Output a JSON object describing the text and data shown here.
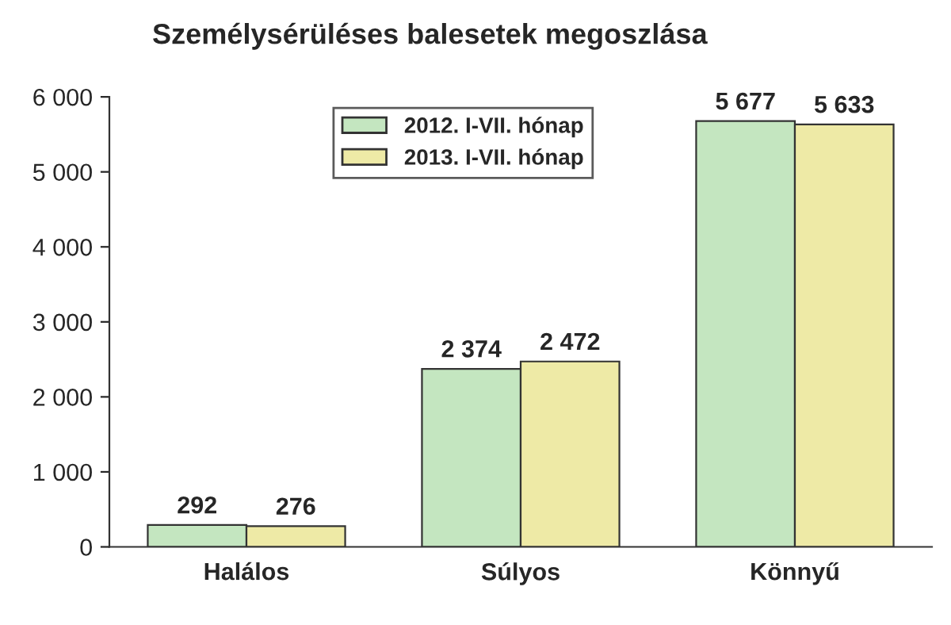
{
  "chart_data": {
    "type": "bar",
    "title": "Személysérüléses balesetek megoszlása",
    "categories": [
      "Halálos",
      "Súlyos",
      "Könnyű"
    ],
    "series": [
      {
        "name": "2012. I-VII. hónap",
        "color": "#c4e6c0",
        "values": [
          292,
          2374,
          5677
        ],
        "value_labels": [
          "292",
          "2 374",
          "5 677"
        ]
      },
      {
        "name": "2013. I-VII. hónap",
        "color": "#eeeaa6",
        "values": [
          276,
          2472,
          5633
        ],
        "value_labels": [
          "276",
          "2 472",
          "5 633"
        ]
      }
    ],
    "ylim": [
      0,
      6000
    ],
    "yticks": [
      {
        "value": 0,
        "label": "0"
      },
      {
        "value": 1000,
        "label": "1 000"
      },
      {
        "value": 2000,
        "label": "2 000"
      },
      {
        "value": 3000,
        "label": "3 000"
      },
      {
        "value": 4000,
        "label": "4 000"
      },
      {
        "value": 5000,
        "label": "5 000"
      },
      {
        "value": 6000,
        "label": "6 000"
      }
    ],
    "grid": false,
    "legend": "top"
  }
}
